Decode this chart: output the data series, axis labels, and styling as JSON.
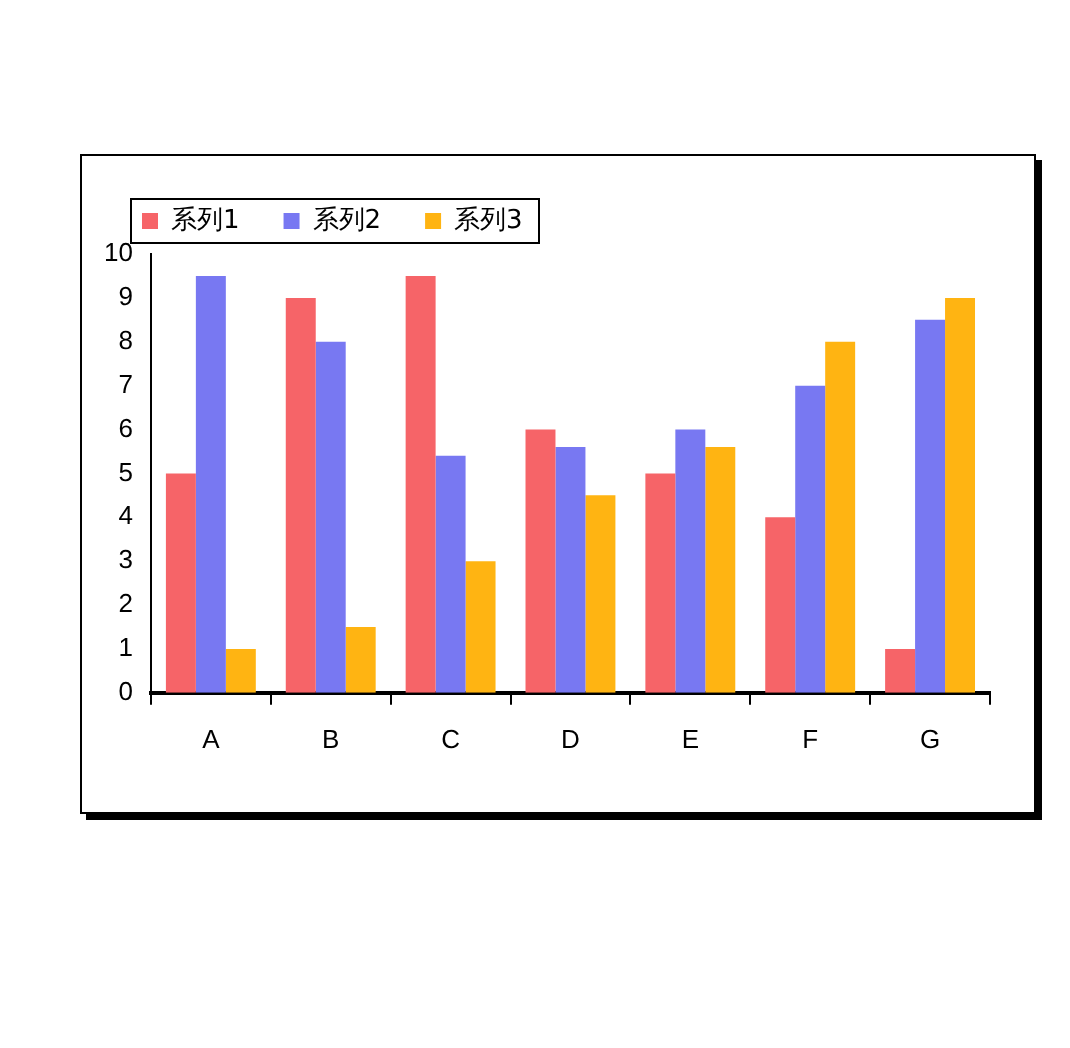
{
  "chart_data": {
    "type": "bar",
    "categories": [
      "A",
      "B",
      "C",
      "D",
      "E",
      "F",
      "G"
    ],
    "series": [
      {
        "name": "系列1",
        "color": "#f66468",
        "values": [
          5,
          9,
          9.5,
          6,
          5,
          4,
          1
        ]
      },
      {
        "name": "系列2",
        "color": "#7878f2",
        "values": [
          9.5,
          8,
          5.4,
          5.6,
          6,
          7,
          8.5
        ]
      },
      {
        "name": "系列3",
        "color": "#ffb412",
        "values": [
          1,
          1.5,
          3,
          4.5,
          5.6,
          8,
          9
        ]
      }
    ],
    "ylim": [
      0,
      10
    ],
    "yticks": [
      0,
      1,
      2,
      3,
      4,
      5,
      6,
      7,
      8,
      9,
      10
    ],
    "grid": false,
    "legend": "top left"
  }
}
